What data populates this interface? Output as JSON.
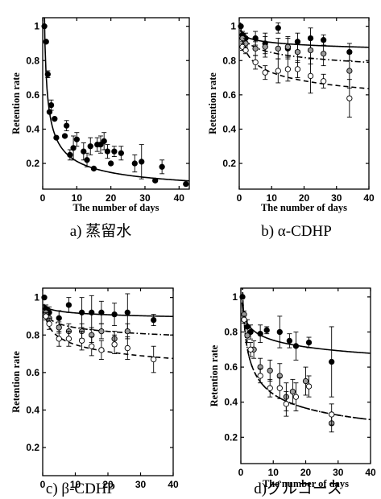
{
  "figure": {
    "captions": [
      "a)  蒸留水",
      "b) α-CDHP",
      "c) β-CDHP",
      "d)グルコース"
    ]
  },
  "chart_data": [
    {
      "type": "scatter",
      "panel": "a",
      "caption": "a)  蒸留水",
      "xlabel": "The number of days",
      "ylabel": "Retention rate",
      "xlim": [
        0,
        43
      ],
      "ylim": [
        0.05,
        1.05
      ],
      "xticks": [
        0,
        10,
        20,
        30,
        40
      ],
      "yticks": [
        0.2,
        0.4,
        0.6,
        0.8,
        1
      ],
      "grid": false,
      "series": [
        {
          "marker": "filled-circle",
          "points": [
            {
              "x": 0.5,
              "y": 1.0,
              "err": 0
            },
            {
              "x": 1,
              "y": 0.91,
              "err": 0
            },
            {
              "x": 1.5,
              "y": 0.72,
              "err": 0.02
            },
            {
              "x": 2,
              "y": 0.5,
              "err": 0
            },
            {
              "x": 2.5,
              "y": 0.54,
              "err": 0.03
            },
            {
              "x": 3.5,
              "y": 0.46,
              "err": 0
            },
            {
              "x": 4,
              "y": 0.35,
              "err": 0
            },
            {
              "x": 6.5,
              "y": 0.36,
              "err": 0
            },
            {
              "x": 7,
              "y": 0.42,
              "err": 0.03
            },
            {
              "x": 8,
              "y": 0.25,
              "err": 0.03
            },
            {
              "x": 9,
              "y": 0.29,
              "err": 0.07
            },
            {
              "x": 10,
              "y": 0.34,
              "err": 0.04
            },
            {
              "x": 12,
              "y": 0.27,
              "err": 0.05
            },
            {
              "x": 13,
              "y": 0.22,
              "err": 0.04
            },
            {
              "x": 14,
              "y": 0.3,
              "err": 0.05
            },
            {
              "x": 15,
              "y": 0.17,
              "err": 0
            },
            {
              "x": 16,
              "y": 0.31,
              "err": 0.04
            },
            {
              "x": 17,
              "y": 0.31,
              "err": 0.05
            },
            {
              "x": 18,
              "y": 0.33,
              "err": 0.05
            },
            {
              "x": 19,
              "y": 0.27,
              "err": 0.04
            },
            {
              "x": 20,
              "y": 0.2,
              "err": 0
            },
            {
              "x": 21,
              "y": 0.27,
              "err": 0.03
            },
            {
              "x": 23,
              "y": 0.26,
              "err": 0.04
            },
            {
              "x": 27,
              "y": 0.2,
              "err": 0.05
            },
            {
              "x": 29,
              "y": 0.21,
              "err": 0.1
            },
            {
              "x": 33,
              "y": 0.1,
              "err": 0
            },
            {
              "x": 35,
              "y": 0.18,
              "err": 0.04
            },
            {
              "x": 42,
              "y": 0.08,
              "err": 0
            }
          ]
        }
      ],
      "curves": [
        {
          "style": "solid",
          "model": "power",
          "a": 0.72,
          "b": 0.53
        }
      ]
    },
    {
      "type": "scatter",
      "panel": "b",
      "caption": "b) α-CDHP",
      "xlabel": "The number of days",
      "ylabel": "Retention rate",
      "xlim": [
        0,
        40
      ],
      "ylim": [
        0.05,
        1.05
      ],
      "xticks": [
        0,
        10,
        20,
        30,
        40
      ],
      "yticks": [
        0.2,
        0.4,
        0.6,
        0.8,
        1
      ],
      "grid": false,
      "series": [
        {
          "marker": "filled-circle",
          "points": [
            {
              "x": 0.5,
              "y": 1.0,
              "err": 0
            },
            {
              "x": 1,
              "y": 0.95,
              "err": 0.02
            },
            {
              "x": 2,
              "y": 0.93,
              "err": 0.03
            },
            {
              "x": 5,
              "y": 0.93,
              "err": 0.04
            },
            {
              "x": 8,
              "y": 0.9,
              "err": 0.06
            },
            {
              "x": 12,
              "y": 0.99,
              "err": 0.03
            },
            {
              "x": 15,
              "y": 0.87,
              "err": 0.06
            },
            {
              "x": 18,
              "y": 0.91,
              "err": 0.05
            },
            {
              "x": 22,
              "y": 0.93,
              "err": 0.06
            },
            {
              "x": 26,
              "y": 0.92,
              "err": 0.03
            },
            {
              "x": 34,
              "y": 0.85,
              "err": 0.05
            }
          ]
        },
        {
          "marker": "gray-circle",
          "points": [
            {
              "x": 1,
              "y": 0.93,
              "err": 0.02
            },
            {
              "x": 2,
              "y": 0.9,
              "err": 0.03
            },
            {
              "x": 5,
              "y": 0.87,
              "err": 0.04
            },
            {
              "x": 8,
              "y": 0.88,
              "err": 0.06
            },
            {
              "x": 12,
              "y": 0.87,
              "err": 0.06
            },
            {
              "x": 15,
              "y": 0.88,
              "err": 0.06
            },
            {
              "x": 18,
              "y": 0.85,
              "err": 0.06
            },
            {
              "x": 22,
              "y": 0.86,
              "err": 0.08
            },
            {
              "x": 26,
              "y": 0.84,
              "err": 0.07
            },
            {
              "x": 34,
              "y": 0.74,
              "err": 0.1
            }
          ]
        },
        {
          "marker": "open-circle",
          "points": [
            {
              "x": 1,
              "y": 0.88,
              "err": 0.02
            },
            {
              "x": 2,
              "y": 0.86,
              "err": 0.02
            },
            {
              "x": 5,
              "y": 0.79,
              "err": 0.04
            },
            {
              "x": 8,
              "y": 0.73,
              "err": 0.04
            },
            {
              "x": 12,
              "y": 0.74,
              "err": 0.07
            },
            {
              "x": 15,
              "y": 0.75,
              "err": 0.07
            },
            {
              "x": 18,
              "y": 0.75,
              "err": 0.05
            },
            {
              "x": 22,
              "y": 0.71,
              "err": 0.1
            },
            {
              "x": 26,
              "y": 0.68,
              "err": 0.04
            },
            {
              "x": 34,
              "y": 0.58,
              "err": 0.11
            }
          ]
        }
      ],
      "curves": [
        {
          "style": "solid",
          "model": "power",
          "a": 0.955,
          "b": 0.023
        },
        {
          "style": "dash-dot",
          "model": "power",
          "a": 0.95,
          "b": 0.05
        },
        {
          "style": "dashed",
          "model": "power",
          "a": 0.92,
          "b": 0.1
        }
      ]
    },
    {
      "type": "scatter",
      "panel": "c",
      "caption": "c) β-CDHP",
      "xlabel": "",
      "ylabel": "Retention rate",
      "xlim": [
        0,
        40
      ],
      "ylim": [
        0.05,
        1.05
      ],
      "xticks": [
        0,
        10,
        20,
        30,
        40
      ],
      "yticks": [
        0.2,
        0.4,
        0.6,
        0.8,
        1
      ],
      "grid": false,
      "series": [
        {
          "marker": "filled-circle",
          "points": [
            {
              "x": 0.5,
              "y": 1.0,
              "err": 0
            },
            {
              "x": 1,
              "y": 0.94,
              "err": 0.02
            },
            {
              "x": 2,
              "y": 0.92,
              "err": 0.03
            },
            {
              "x": 5,
              "y": 0.89,
              "err": 0.04
            },
            {
              "x": 8,
              "y": 0.96,
              "err": 0.04
            },
            {
              "x": 12,
              "y": 0.92,
              "err": 0.08
            },
            {
              "x": 15,
              "y": 0.92,
              "err": 0.09
            },
            {
              "x": 18,
              "y": 0.92,
              "err": 0.06
            },
            {
              "x": 22,
              "y": 0.91,
              "err": 0.06
            },
            {
              "x": 26,
              "y": 0.92,
              "err": 0.1
            },
            {
              "x": 34,
              "y": 0.88,
              "err": 0.03
            }
          ]
        },
        {
          "marker": "gray-circle",
          "points": [
            {
              "x": 1,
              "y": 0.92,
              "err": 0.02
            },
            {
              "x": 2,
              "y": 0.89,
              "err": 0.03
            },
            {
              "x": 5,
              "y": 0.84,
              "err": 0.03
            },
            {
              "x": 8,
              "y": 0.82,
              "err": 0.04
            },
            {
              "x": 12,
              "y": 0.82,
              "err": 0.04
            },
            {
              "x": 15,
              "y": 0.8,
              "err": 0.04
            },
            {
              "x": 18,
              "y": 0.82,
              "err": 0.04
            },
            {
              "x": 22,
              "y": 0.78,
              "err": 0.04
            },
            {
              "x": 26,
              "y": 0.82,
              "err": 0.04
            }
          ]
        },
        {
          "marker": "open-circle",
          "points": [
            {
              "x": 1,
              "y": 0.9,
              "err": 0.02
            },
            {
              "x": 2,
              "y": 0.86,
              "err": 0.03
            },
            {
              "x": 5,
              "y": 0.78,
              "err": 0.04
            },
            {
              "x": 8,
              "y": 0.78,
              "err": 0.04
            },
            {
              "x": 12,
              "y": 0.77,
              "err": 0.05
            },
            {
              "x": 15,
              "y": 0.74,
              "err": 0.05
            },
            {
              "x": 18,
              "y": 0.72,
              "err": 0.05
            },
            {
              "x": 22,
              "y": 0.75,
              "err": 0.05
            },
            {
              "x": 26,
              "y": 0.73,
              "err": 0.06
            },
            {
              "x": 34,
              "y": 0.67,
              "err": 0.07
            }
          ]
        }
      ],
      "curves": [
        {
          "style": "solid",
          "model": "power",
          "a": 0.95,
          "b": 0.015
        },
        {
          "style": "dash-dot",
          "model": "power",
          "a": 0.91,
          "b": 0.035
        },
        {
          "style": "dashed",
          "model": "power",
          "a": 0.89,
          "b": 0.075
        }
      ]
    },
    {
      "type": "scatter",
      "panel": "d",
      "caption": "d)グルコース",
      "xlabel": "The number of days",
      "ylabel": "Retention rate",
      "xlim": [
        0,
        40
      ],
      "ylim": [
        0.05,
        1.05
      ],
      "xticks": [
        0,
        10,
        20,
        30,
        40
      ],
      "yticks": [
        0.2,
        0.4,
        0.6,
        0.8,
        1
      ],
      "grid": false,
      "series": [
        {
          "marker": "filled-circle",
          "points": [
            {
              "x": 0.5,
              "y": 1.0,
              "err": 0
            },
            {
              "x": 2,
              "y": 0.83,
              "err": 0.04
            },
            {
              "x": 3,
              "y": 0.8,
              "err": 0.04
            },
            {
              "x": 6,
              "y": 0.79,
              "err": 0.05
            },
            {
              "x": 8,
              "y": 0.81,
              "err": 0.02
            },
            {
              "x": 12,
              "y": 0.8,
              "err": 0.09
            },
            {
              "x": 15,
              "y": 0.75,
              "err": 0.04
            },
            {
              "x": 17,
              "y": 0.72,
              "err": 0.08
            },
            {
              "x": 21,
              "y": 0.74,
              "err": 0.03
            },
            {
              "x": 28,
              "y": 0.63,
              "err": 0.2
            }
          ]
        },
        {
          "marker": "gray-circle",
          "points": [
            {
              "x": 1,
              "y": 0.9,
              "err": 0.02
            },
            {
              "x": 2,
              "y": 0.78,
              "err": 0.04
            },
            {
              "x": 4,
              "y": 0.7,
              "err": 0.05
            },
            {
              "x": 6,
              "y": 0.6,
              "err": 0.05
            },
            {
              "x": 9,
              "y": 0.58,
              "err": 0.06
            },
            {
              "x": 12,
              "y": 0.55,
              "err": 0.07
            },
            {
              "x": 14,
              "y": 0.43,
              "err": 0.08
            },
            {
              "x": 16,
              "y": 0.46,
              "err": 0.07
            },
            {
              "x": 20,
              "y": 0.52,
              "err": 0.08
            },
            {
              "x": 28,
              "y": 0.28,
              "err": 0.05
            }
          ]
        },
        {
          "marker": "open-circle",
          "points": [
            {
              "x": 1,
              "y": 0.87,
              "err": 0.02
            },
            {
              "x": 3,
              "y": 0.7,
              "err": 0.04
            },
            {
              "x": 6,
              "y": 0.55,
              "err": 0.04
            },
            {
              "x": 9,
              "y": 0.48,
              "err": 0.05
            },
            {
              "x": 12,
              "y": 0.48,
              "err": 0.06
            },
            {
              "x": 14,
              "y": 0.39,
              "err": 0.07
            },
            {
              "x": 17,
              "y": 0.43,
              "err": 0.08
            },
            {
              "x": 21,
              "y": 0.49,
              "err": 0.06
            },
            {
              "x": 28,
              "y": 0.33,
              "err": 0.06
            }
          ]
        }
      ],
      "curves": [
        {
          "style": "solid",
          "model": "power",
          "a": 0.895,
          "b": 0.075
        },
        {
          "style": "dash-dot",
          "model": "power",
          "a": 0.86,
          "b": 0.285
        },
        {
          "style": "dashed",
          "model": "power",
          "a": 0.86,
          "b": 0.285
        }
      ]
    }
  ]
}
